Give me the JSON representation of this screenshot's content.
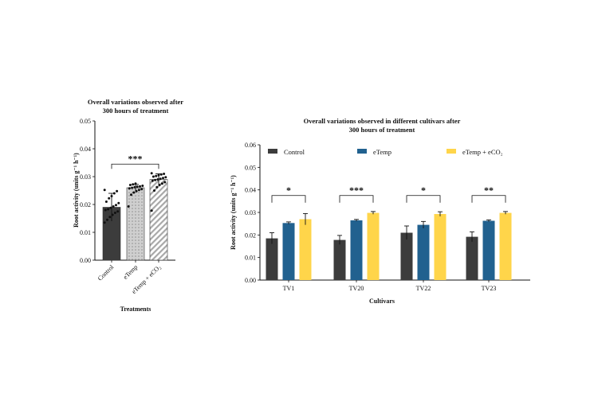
{
  "colors": {
    "control": "#3c3c3c",
    "etemp": "#21618f",
    "etemp_eco2": "#ffd54a",
    "hatch_light": "#c9c9c9",
    "hatch_dark": "#9a9a9a"
  },
  "chart_data": [
    {
      "type": "bar",
      "title": [
        "Overall variations observed after",
        "300 hours of treatment"
      ],
      "xlabel": "Treatments",
      "ylabel": "Root activity (units g⁻¹ h⁻¹)",
      "ylim": [
        0,
        0.05
      ],
      "yticks": [
        "0.00",
        "0.01",
        "0.02",
        "0.03",
        "0.04",
        "0.05"
      ],
      "categories": [
        "Control",
        "eTemp",
        "eTemp + eCO₂"
      ],
      "values": [
        0.019,
        0.026,
        0.029
      ],
      "errors": [
        0.005,
        0.0012,
        0.002
      ],
      "significance": "***",
      "points": [
        [
          0.0135,
          0.0145,
          0.0155,
          0.0163,
          0.017,
          0.0175,
          0.018,
          0.0183,
          0.0188,
          0.0193,
          0.0198,
          0.0205,
          0.021,
          0.0222,
          0.023,
          0.024,
          0.0248,
          0.0252
        ],
        [
          0.0193,
          0.0235,
          0.0243,
          0.0248,
          0.0252,
          0.0255,
          0.0258,
          0.026,
          0.0262,
          0.0264,
          0.0265,
          0.0267,
          0.027,
          0.0272,
          0.0275
        ],
        [
          0.0178,
          0.025,
          0.0262,
          0.027,
          0.0275,
          0.028,
          0.0285,
          0.0288,
          0.029,
          0.0292,
          0.0295,
          0.0298,
          0.03,
          0.0302,
          0.0305,
          0.0308,
          0.031,
          0.0312
        ]
      ],
      "grid": false
    },
    {
      "type": "bar",
      "title": [
        "Overall variations observed in different cultivars after",
        "300 hours of treatment"
      ],
      "xlabel": "Cultivars",
      "ylabel": "Root activity (units g⁻¹ h⁻¹)",
      "ylim": [
        0,
        0.06
      ],
      "yticks": [
        "0.00",
        "0.01",
        "0.02",
        "0.03",
        "0.04",
        "0.05",
        "0.06"
      ],
      "categories": [
        "TV1",
        "TV20",
        "TV22",
        "TV23"
      ],
      "series": [
        {
          "name": "Control",
          "values": [
            0.0185,
            0.0178,
            0.021,
            0.0192
          ],
          "errors": [
            0.0025,
            0.002,
            0.003,
            0.0022
          ]
        },
        {
          "name": "eTemp",
          "values": [
            0.0253,
            0.0265,
            0.0245,
            0.0263
          ],
          "errors": [
            0.0005,
            0.0004,
            0.0015,
            0.0004
          ]
        },
        {
          "name": "eTemp + eCO₂",
          "values": [
            0.027,
            0.0298,
            0.0293,
            0.0298
          ],
          "errors": [
            0.0025,
            0.0006,
            0.001,
            0.0006
          ]
        }
      ],
      "significance": [
        "*",
        "***",
        "*",
        "**"
      ],
      "legend": "top",
      "grid": false
    }
  ]
}
